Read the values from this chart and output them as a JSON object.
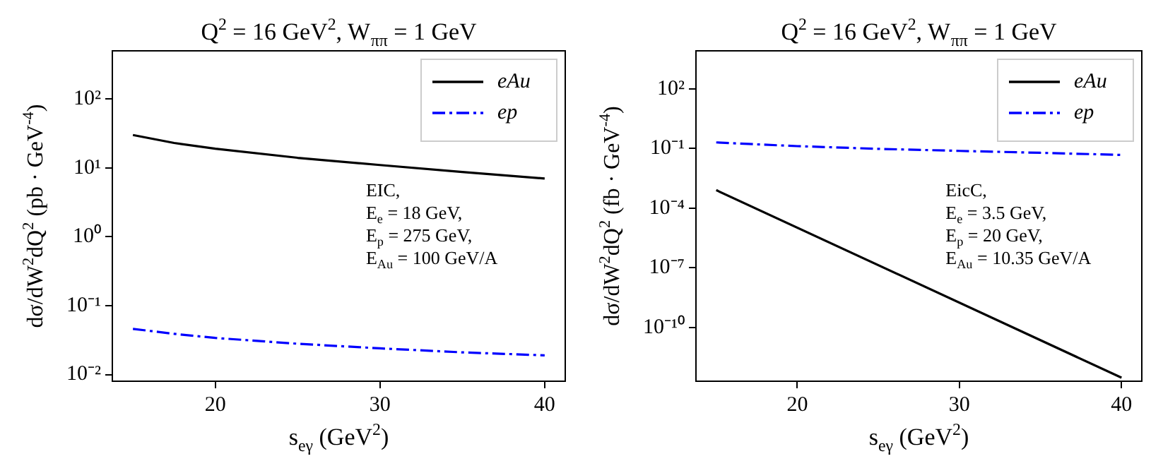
{
  "chart_data": [
    {
      "type": "line",
      "title": "Q$^{2}$ = 16 GeV$^{2}$, W$_{ππ}$ = 1 GeV",
      "xlabel": "s$_{eγ}$ (GeV$^{2}$)",
      "ylabel": "dσ/dW$^{2}$dQ$^{2}$ (pb · GeV$^{-4}$)",
      "x": [
        15,
        17.5,
        20,
        25,
        30,
        35,
        40
      ],
      "series": [
        {
          "name": "eAu",
          "color": "#000000",
          "line_style": "solid",
          "values": [
            30,
            23,
            19,
            14,
            11,
            8.7,
            7
          ]
        },
        {
          "name": "ep",
          "color": "#0000ff",
          "line_style": "dashed",
          "values": [
            0.046,
            0.039,
            0.034,
            0.028,
            0.024,
            0.021,
            0.019
          ]
        }
      ],
      "xlim": [
        13.75,
        41.25
      ],
      "xticks": [
        20,
        30,
        40
      ],
      "log": true,
      "ylim": [
        0.008,
        500
      ],
      "yticks": [
        {
          "value": 0.01,
          "label": "10⁻²"
        },
        {
          "value": 0.1,
          "label": "10⁻¹"
        },
        {
          "value": 1,
          "label": "10⁰"
        },
        {
          "value": 10,
          "label": "10¹"
        },
        {
          "value": 100,
          "label": "10²"
        }
      ],
      "grid": false,
      "legend": "top right",
      "marker": "none",
      "annotations": [
        "EIC,",
        "E$_{e}$ = 18 GeV,",
        "E$_{p}$ = 275 GeV,",
        "E$_{Au}$ = 100 GeV/A"
      ]
    },
    {
      "type": "line",
      "title": "Q$^{2}$ = 16 GeV$^{2}$, W$_{ππ}$ = 1 GeV",
      "xlabel": "s$_{eγ}$ (GeV$^{2}$)",
      "ylabel": "dσ/dW$^{2}$dQ$^{2}$ (fb · GeV$^{-4}$)",
      "series": [
        {
          "name": "eAu",
          "color": "#000000",
          "line_style": "solid",
          "x": [
            15,
            40
          ],
          "values": [
            0.0008,
            3e-13
          ]
        },
        {
          "name": "ep",
          "color": "#0000ff",
          "line_style": "dashed",
          "x": [
            15,
            17.5,
            20,
            25,
            30,
            35,
            40
          ],
          "values": [
            0.2,
            0.16,
            0.13,
            0.095,
            0.075,
            0.06,
            0.047
          ]
        }
      ],
      "xlim": [
        13.75,
        41.25
      ],
      "xticks": [
        20,
        30,
        40
      ],
      "log": true,
      "ylim": [
        2e-13,
        8000
      ],
      "yticks": [
        {
          "value": 1e-10,
          "label": "10⁻¹⁰"
        },
        {
          "value": 1e-07,
          "label": "10⁻⁷"
        },
        {
          "value": 0.0001,
          "label": "10⁻⁴"
        },
        {
          "value": 0.1,
          "label": "10⁻¹"
        },
        {
          "value": 100,
          "label": "10²"
        }
      ],
      "grid": false,
      "legend": "top right",
      "marker": "none",
      "annotations": [
        "EicC,",
        "E$_{e}$ = 3.5 GeV,",
        "E$_{p}$ = 20 GeV,",
        "E$_{Au}$ = 10.35 GeV/A"
      ]
    }
  ]
}
